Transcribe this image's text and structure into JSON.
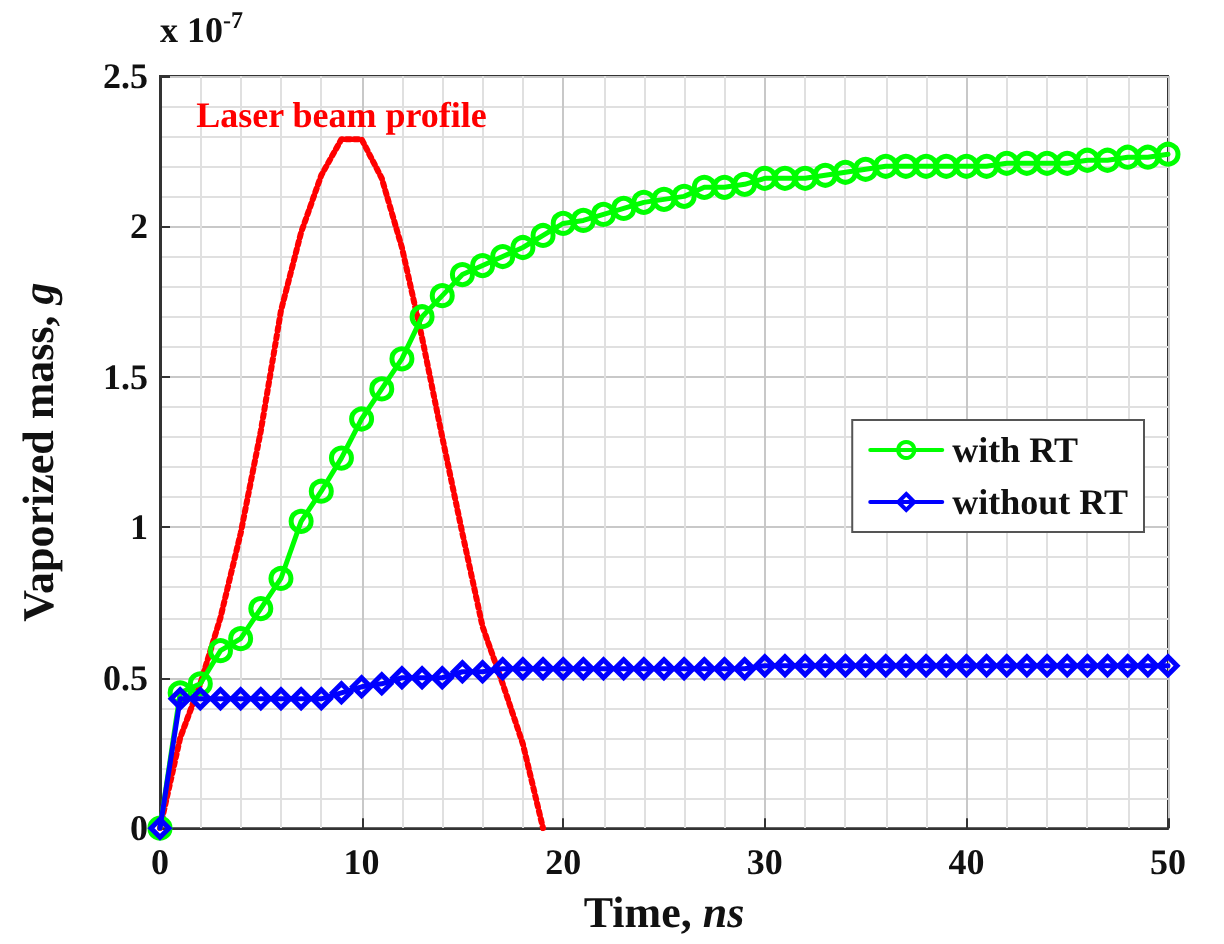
{
  "chart_data": {
    "type": "line",
    "xlabel": "Time, ns",
    "ylabel": "Vaporized mass, g",
    "annotations": [
      "x 10$^{-7}$"
    ],
    "x": [
      0,
      1,
      2,
      3,
      4,
      5,
      6,
      7,
      8,
      9,
      10,
      11,
      12,
      13,
      14,
      15,
      16,
      17,
      18,
      19,
      20,
      21,
      22,
      23,
      24,
      25,
      26,
      27,
      28,
      29,
      30,
      31,
      32,
      33,
      34,
      35,
      36,
      37,
      38,
      39,
      40,
      41,
      42,
      43,
      44,
      45,
      46,
      47,
      48,
      49,
      50
    ],
    "series": [
      {
        "name": "with RT",
        "color": "#00ff00",
        "marker": "circle",
        "values": [
          0,
          0.45,
          0.48,
          0.59,
          0.63,
          0.73,
          0.83,
          1.02,
          1.12,
          1.23,
          1.36,
          1.46,
          1.56,
          1.7,
          1.77,
          1.84,
          1.87,
          1.9,
          1.93,
          1.97,
          2.01,
          2.02,
          2.04,
          2.06,
          2.08,
          2.09,
          2.1,
          2.13,
          2.13,
          2.14,
          2.16,
          2.16,
          2.16,
          2.17,
          2.18,
          2.19,
          2.2,
          2.2,
          2.2,
          2.2,
          2.2,
          2.2,
          2.21,
          2.21,
          2.21,
          2.21,
          2.22,
          2.22,
          2.23,
          2.23,
          2.24
        ]
      },
      {
        "name": "without RT",
        "color": "#0000ff",
        "marker": "diamond",
        "values": [
          0,
          0.43,
          0.43,
          0.43,
          0.43,
          0.43,
          0.43,
          0.43,
          0.43,
          0.45,
          0.47,
          0.48,
          0.5,
          0.5,
          0.5,
          0.52,
          0.52,
          0.53,
          0.53,
          0.53,
          0.53,
          0.53,
          0.53,
          0.53,
          0.53,
          0.53,
          0.53,
          0.53,
          0.53,
          0.53,
          0.54,
          0.54,
          0.54,
          0.54,
          0.54,
          0.54,
          0.54,
          0.54,
          0.54,
          0.54,
          0.54,
          0.54,
          0.54,
          0.54,
          0.54,
          0.54,
          0.54,
          0.54,
          0.54,
          0.54,
          0.54
        ]
      },
      {
        "name": "Laser beam profile",
        "color": "#ff0000",
        "marker": "none",
        "line_style": "dotted",
        "x": [
          0,
          1,
          2,
          3,
          4,
          5,
          6,
          7,
          8,
          9,
          10,
          11,
          12,
          13,
          14,
          15,
          16,
          17,
          18,
          19
        ],
        "values": [
          0,
          0.3,
          0.48,
          0.7,
          0.98,
          1.32,
          1.72,
          1.98,
          2.17,
          2.29,
          2.29,
          2.16,
          1.93,
          1.63,
          1.3,
          0.98,
          0.67,
          0.48,
          0.28,
          0
        ]
      }
    ],
    "xlim": [
      0,
      50
    ],
    "xticks": [
      0,
      10,
      20,
      30,
      40,
      50
    ],
    "ylim": [
      0,
      2.5
    ],
    "yticks": [
      0,
      0.5,
      1,
      1.5,
      2,
      2.5
    ],
    "grid": true,
    "legend": "right",
    "line_style": "solid"
  }
}
